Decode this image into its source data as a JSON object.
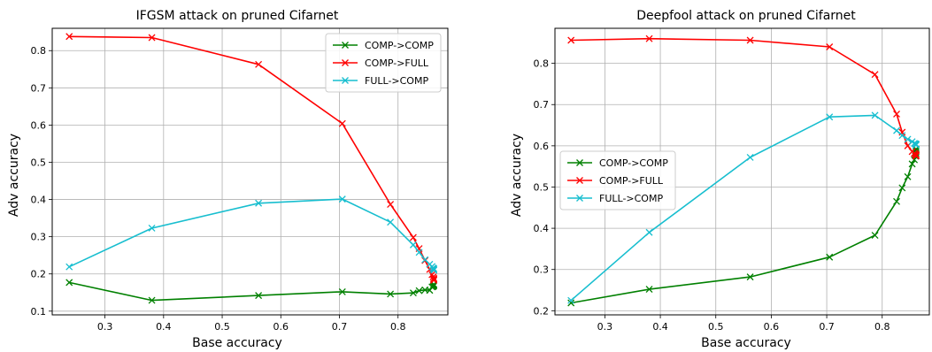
{
  "chart_data": [
    {
      "type": "line",
      "title": "IFGSM attack on pruned Cifarnet",
      "xlabel": "Base accuracy",
      "ylabel": "Adv accuracy",
      "xlim": [
        0.21,
        0.885
      ],
      "ylim": [
        0.09,
        0.86
      ],
      "xticks": [
        "0.3",
        "0.4",
        "0.5",
        "0.6",
        "0.7",
        "0.8"
      ],
      "yticks": [
        "0.1",
        "0.2",
        "0.3",
        "0.4",
        "0.5",
        "0.6",
        "0.7",
        "0.8"
      ],
      "grid": true,
      "legend_position": "top-right",
      "series": [
        {
          "name": "COMP->COMP",
          "color": "#008000",
          "x": [
            0.239,
            0.38,
            0.562,
            0.705,
            0.787,
            0.826,
            0.836,
            0.846,
            0.854,
            0.858,
            0.86,
            0.861,
            0.861,
            0.861,
            0.861
          ],
          "y": [
            0.177,
            0.129,
            0.142,
            0.152,
            0.146,
            0.149,
            0.155,
            0.157,
            0.156,
            0.165,
            0.166,
            0.168,
            0.17,
            0.171,
            0.172
          ]
        },
        {
          "name": "COMP->FULL",
          "color": "#ff0000",
          "x": [
            0.239,
            0.38,
            0.562,
            0.705,
            0.787,
            0.826,
            0.836,
            0.846,
            0.854,
            0.858,
            0.86,
            0.861,
            0.861,
            0.861,
            0.861
          ],
          "y": [
            0.838,
            0.835,
            0.763,
            0.604,
            0.387,
            0.298,
            0.268,
            0.236,
            0.212,
            0.198,
            0.192,
            0.188,
            0.186,
            0.184,
            0.183
          ]
        },
        {
          "name": "FULL->COMP",
          "color": "#17becf",
          "x": [
            0.239,
            0.38,
            0.562,
            0.705,
            0.787,
            0.826,
            0.836,
            0.846,
            0.854,
            0.858,
            0.86,
            0.861,
            0.861,
            0.861,
            0.861
          ],
          "y": [
            0.219,
            0.323,
            0.39,
            0.401,
            0.339,
            0.278,
            0.258,
            0.238,
            0.226,
            0.22,
            0.216,
            0.214,
            0.212,
            0.211,
            0.21
          ]
        }
      ]
    },
    {
      "type": "line",
      "title": "Deepfool attack on pruned Cifarnet",
      "xlabel": "Base accuracy",
      "ylabel": "Adv accuracy",
      "xlim": [
        0.21,
        0.885
      ],
      "ylim": [
        0.19,
        0.885
      ],
      "xticks": [
        "0.3",
        "0.4",
        "0.5",
        "0.6",
        "0.7",
        "0.8"
      ],
      "yticks": [
        "0.2",
        "0.3",
        "0.4",
        "0.5",
        "0.6",
        "0.7",
        "0.8"
      ],
      "grid": true,
      "legend_position": "center-left",
      "series": [
        {
          "name": "COMP->COMP",
          "color": "#008000",
          "x": [
            0.239,
            0.38,
            0.562,
            0.705,
            0.787,
            0.826,
            0.836,
            0.846,
            0.854,
            0.858,
            0.86,
            0.861,
            0.861,
            0.861,
            0.861
          ],
          "y": [
            0.219,
            0.252,
            0.282,
            0.33,
            0.383,
            0.465,
            0.498,
            0.525,
            0.556,
            0.566,
            0.575,
            0.582,
            0.586,
            0.59,
            0.592
          ]
        },
        {
          "name": "COMP->FULL",
          "color": "#ff0000",
          "x": [
            0.239,
            0.38,
            0.562,
            0.705,
            0.787,
            0.826,
            0.836,
            0.846,
            0.854,
            0.858,
            0.86,
            0.861,
            0.861,
            0.861,
            0.861
          ],
          "y": [
            0.856,
            0.86,
            0.856,
            0.84,
            0.773,
            0.677,
            0.633,
            0.6,
            0.586,
            0.582,
            0.58,
            0.578,
            0.577,
            0.576,
            0.575
          ]
        },
        {
          "name": "FULL->COMP",
          "color": "#17becf",
          "x": [
            0.239,
            0.38,
            0.562,
            0.705,
            0.787,
            0.826,
            0.836,
            0.846,
            0.854,
            0.858,
            0.86,
            0.861,
            0.861,
            0.861,
            0.861
          ],
          "y": [
            0.225,
            0.39,
            0.572,
            0.67,
            0.674,
            0.637,
            0.625,
            0.616,
            0.61,
            0.606,
            0.605,
            0.604,
            0.603,
            0.602,
            0.602
          ]
        }
      ]
    }
  ]
}
